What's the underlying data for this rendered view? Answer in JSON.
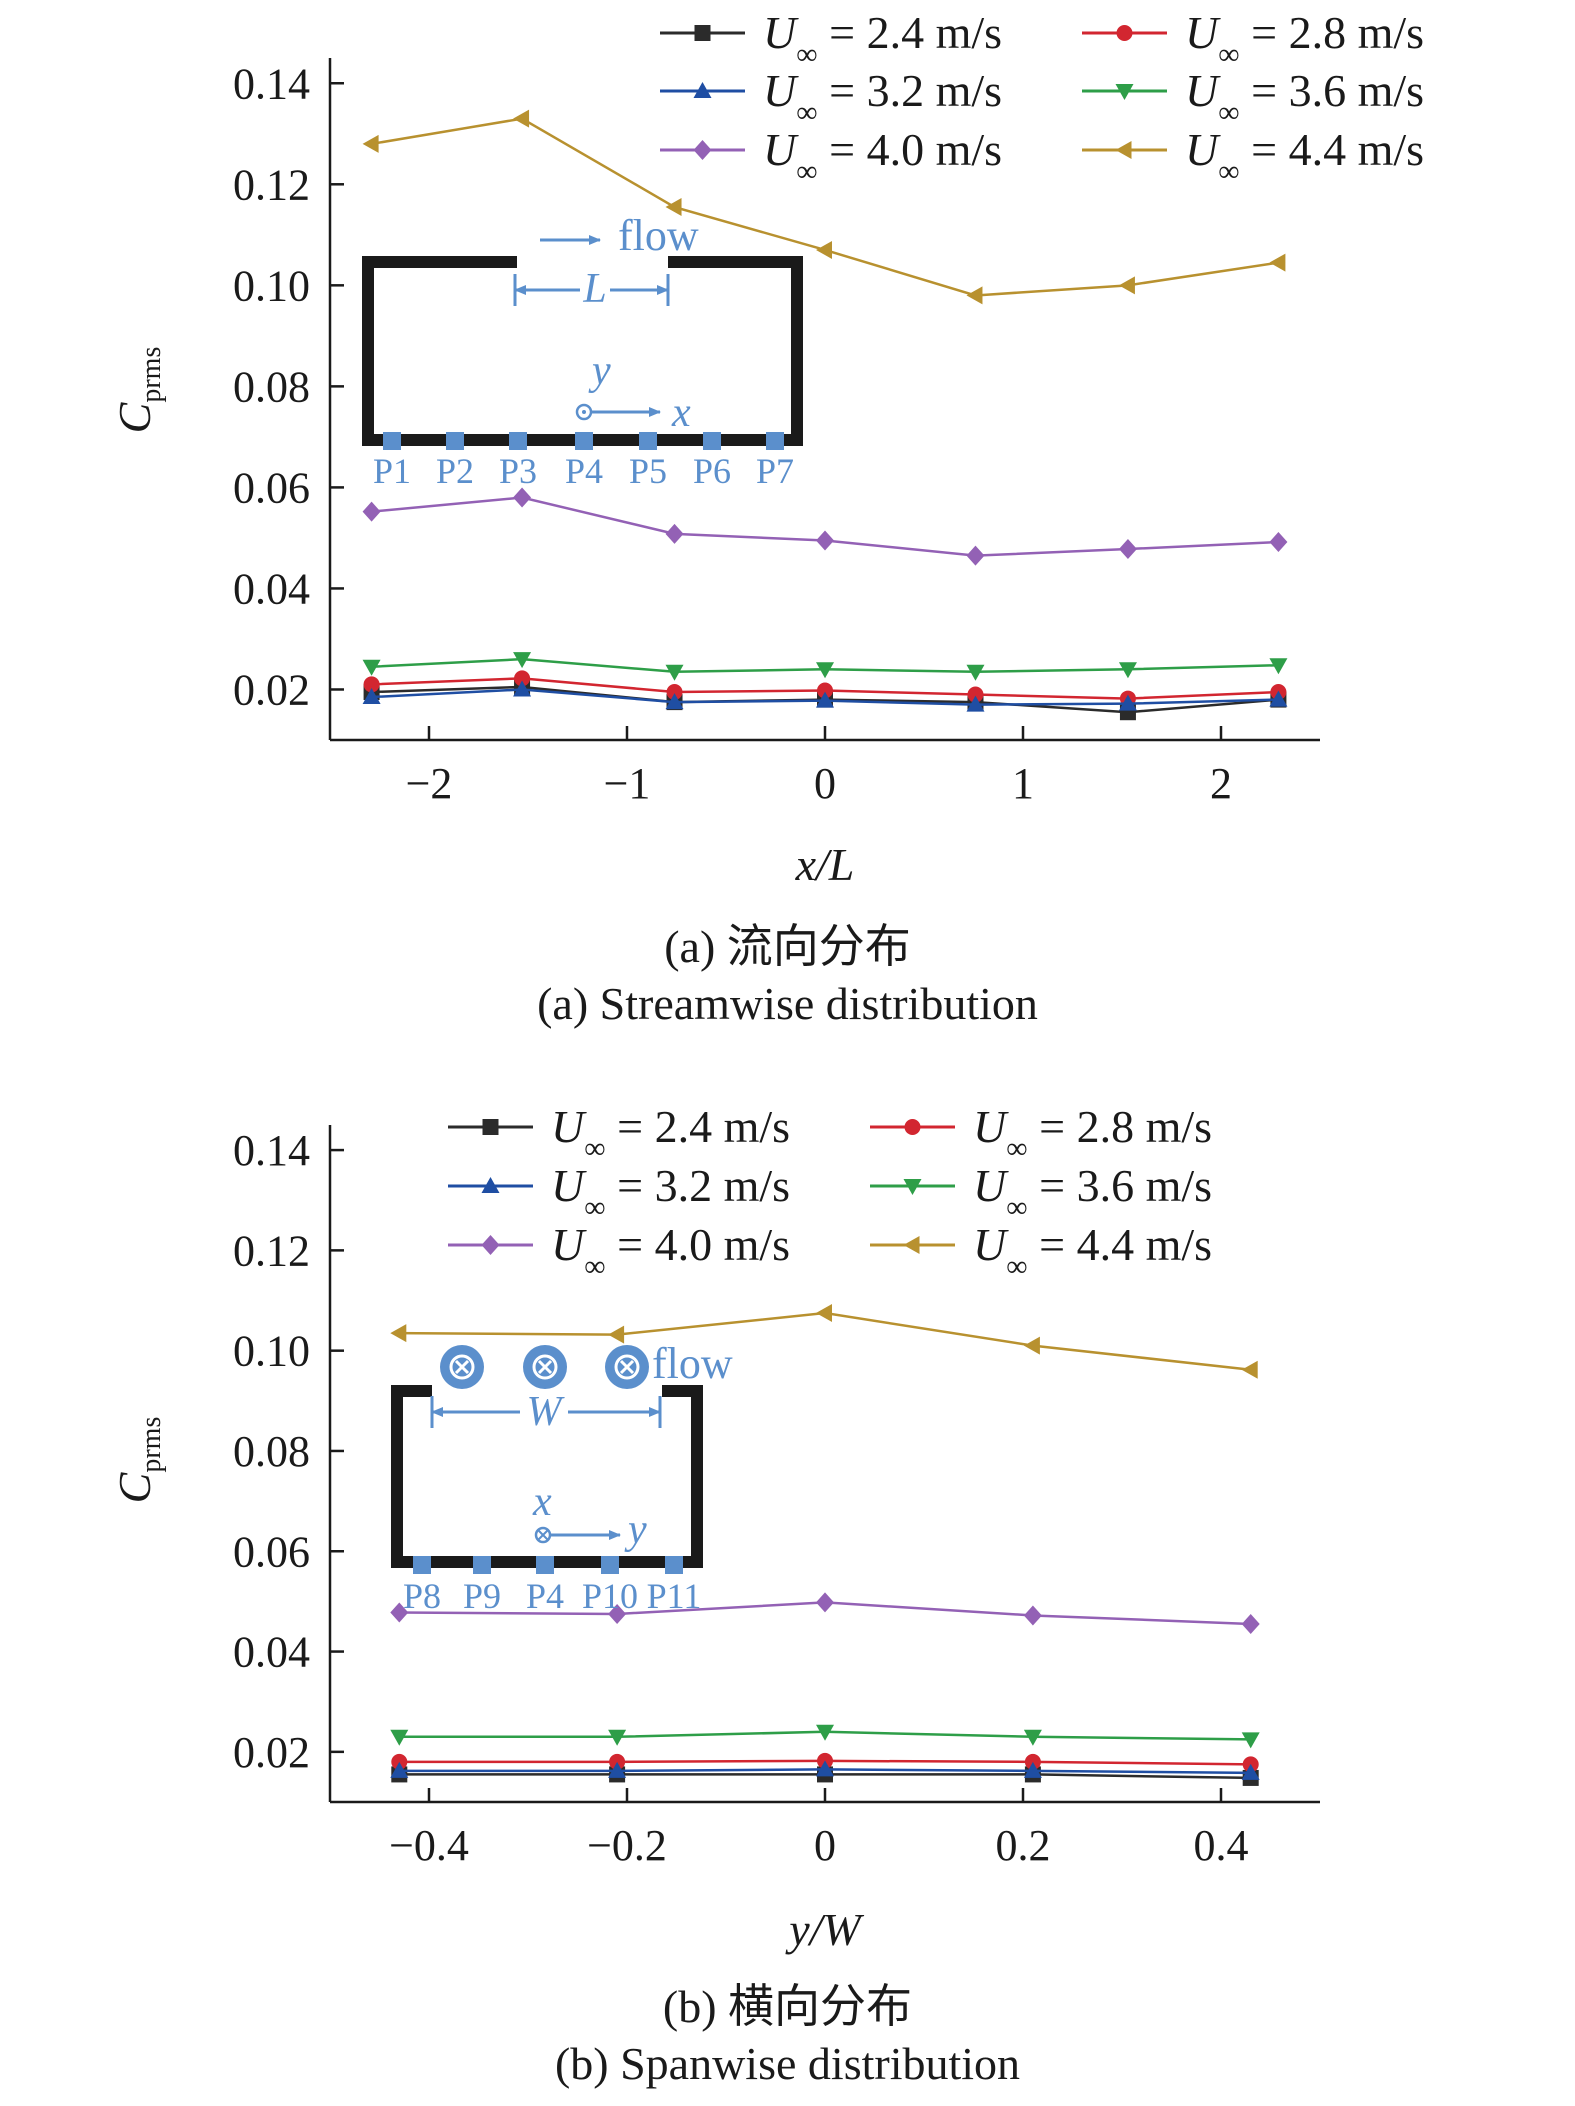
{
  "chart_data": [
    {
      "type": "line",
      "x": [
        -2.29,
        -1.53,
        -0.76,
        0,
        0.76,
        1.53,
        2.29
      ],
      "xlabel": "x/L",
      "ylabel": "C_prms",
      "xlim": [
        -2.5,
        2.5
      ],
      "ylim": [
        0.01,
        0.145
      ],
      "xticks": [
        -2,
        -1,
        0,
        1,
        2
      ],
      "xtick_labels": [
        "−2",
        "−1",
        "0",
        "1",
        "2"
      ],
      "yticks": [
        0.02,
        0.04,
        0.06,
        0.08,
        0.1,
        0.12,
        0.14
      ],
      "ytick_labels": [
        "0.02",
        "0.04",
        "0.06",
        "0.08",
        "0.10",
        "0.12",
        "0.14"
      ],
      "legend_position": "top",
      "series": [
        {
          "name": "U∞ = 2.4 m/s",
          "color": "#2b2b2b",
          "marker": "square",
          "values": [
            0.0195,
            0.0205,
            0.0175,
            0.018,
            0.0175,
            0.0155,
            0.018
          ]
        },
        {
          "name": "U∞ = 2.8 m/s",
          "color": "#d22630",
          "marker": "circle",
          "values": [
            0.021,
            0.0222,
            0.0195,
            0.0198,
            0.019,
            0.0182,
            0.0195
          ]
        },
        {
          "name": "U∞ = 3.2 m/s",
          "color": "#1f4ea3",
          "marker": "triangle-up",
          "values": [
            0.0185,
            0.02,
            0.0175,
            0.0178,
            0.017,
            0.0172,
            0.018
          ]
        },
        {
          "name": "U∞ = 3.6 m/s",
          "color": "#2e9e48",
          "marker": "triangle-down",
          "values": [
            0.0245,
            0.026,
            0.0235,
            0.024,
            0.0235,
            0.024,
            0.0248
          ]
        },
        {
          "name": "U∞ = 4.0 m/s",
          "color": "#9361b5",
          "marker": "diamond",
          "values": [
            0.0552,
            0.058,
            0.0508,
            0.0495,
            0.0465,
            0.0478,
            0.0492
          ]
        },
        {
          "name": "U∞ = 4.4 m/s",
          "color": "#b8912f",
          "marker": "triangle-left",
          "values": [
            0.128,
            0.133,
            0.1155,
            0.107,
            0.098,
            0.1,
            0.1045
          ]
        }
      ]
    },
    {
      "type": "line",
      "x": [
        -0.43,
        -0.21,
        0,
        0.21,
        0.43
      ],
      "xlabel": "y/W",
      "ylabel": "C_prms",
      "xlim": [
        -0.5,
        0.5
      ],
      "ylim": [
        0.01,
        0.145
      ],
      "xticks": [
        -0.4,
        -0.2,
        0,
        0.2,
        0.4
      ],
      "xtick_labels": [
        "−0.4",
        "−0.2",
        "0",
        "0.2",
        "0.4"
      ],
      "yticks": [
        0.02,
        0.04,
        0.06,
        0.08,
        0.1,
        0.12,
        0.14
      ],
      "ytick_labels": [
        "0.02",
        "0.04",
        "0.06",
        "0.08",
        "0.10",
        "0.12",
        "0.14"
      ],
      "legend_position": "top",
      "series": [
        {
          "name": "U∞ = 2.4 m/s",
          "color": "#2b2b2b",
          "marker": "square",
          "values": [
            0.0155,
            0.0155,
            0.0155,
            0.0155,
            0.0148
          ]
        },
        {
          "name": "U∞ = 2.8 m/s",
          "color": "#d22630",
          "marker": "circle",
          "values": [
            0.018,
            0.018,
            0.0182,
            0.018,
            0.0175
          ]
        },
        {
          "name": "U∞ = 3.2 m/s",
          "color": "#1f4ea3",
          "marker": "triangle-up",
          "values": [
            0.0162,
            0.0162,
            0.0165,
            0.0162,
            0.0158
          ]
        },
        {
          "name": "U∞ = 3.6 m/s",
          "color": "#2e9e48",
          "marker": "triangle-down",
          "values": [
            0.023,
            0.023,
            0.024,
            0.023,
            0.0225
          ]
        },
        {
          "name": "U∞ = 4.0 m/s",
          "color": "#9361b5",
          "marker": "diamond",
          "values": [
            0.0478,
            0.0475,
            0.0498,
            0.0472,
            0.0455
          ]
        },
        {
          "name": "U∞ = 4.4 m/s",
          "color": "#b8912f",
          "marker": "triangle-left",
          "values": [
            0.1035,
            0.1032,
            0.1075,
            0.101,
            0.0962
          ]
        }
      ]
    }
  ],
  "legend": {
    "symbol": "U",
    "subscript": "∞",
    "texts": [
      " = 2.4 m/s",
      " = 2.8 m/s",
      " = 3.2 m/s",
      " = 3.6 m/s",
      " = 4.0 m/s",
      " = 4.4 m/s"
    ]
  },
  "axis_label": {
    "c": "C",
    "sub": "prms"
  },
  "panel_a": {
    "xlabel": "x/L",
    "caption_cn": "(a) 流向分布",
    "caption_en": "(a) Streamwise distribution",
    "inset": {
      "flow_label": "flow",
      "length_label": "L",
      "axis_y": "y",
      "axis_x": "x",
      "probes": [
        "P1",
        "P2",
        "P3",
        "P4",
        "P5",
        "P6",
        "P7"
      ],
      "color": "#5b8fcc"
    }
  },
  "panel_b": {
    "xlabel": "y/W",
    "caption_cn": "(b) 横向分布",
    "caption_en": "(b) Spanwise distribution",
    "inset": {
      "flow_label": "flow",
      "width_label": "W",
      "axis_x": "x",
      "axis_y": "y",
      "probes": [
        "P8",
        "P9",
        "P4",
        "P10",
        "P11"
      ],
      "color": "#5b8fcc"
    }
  }
}
